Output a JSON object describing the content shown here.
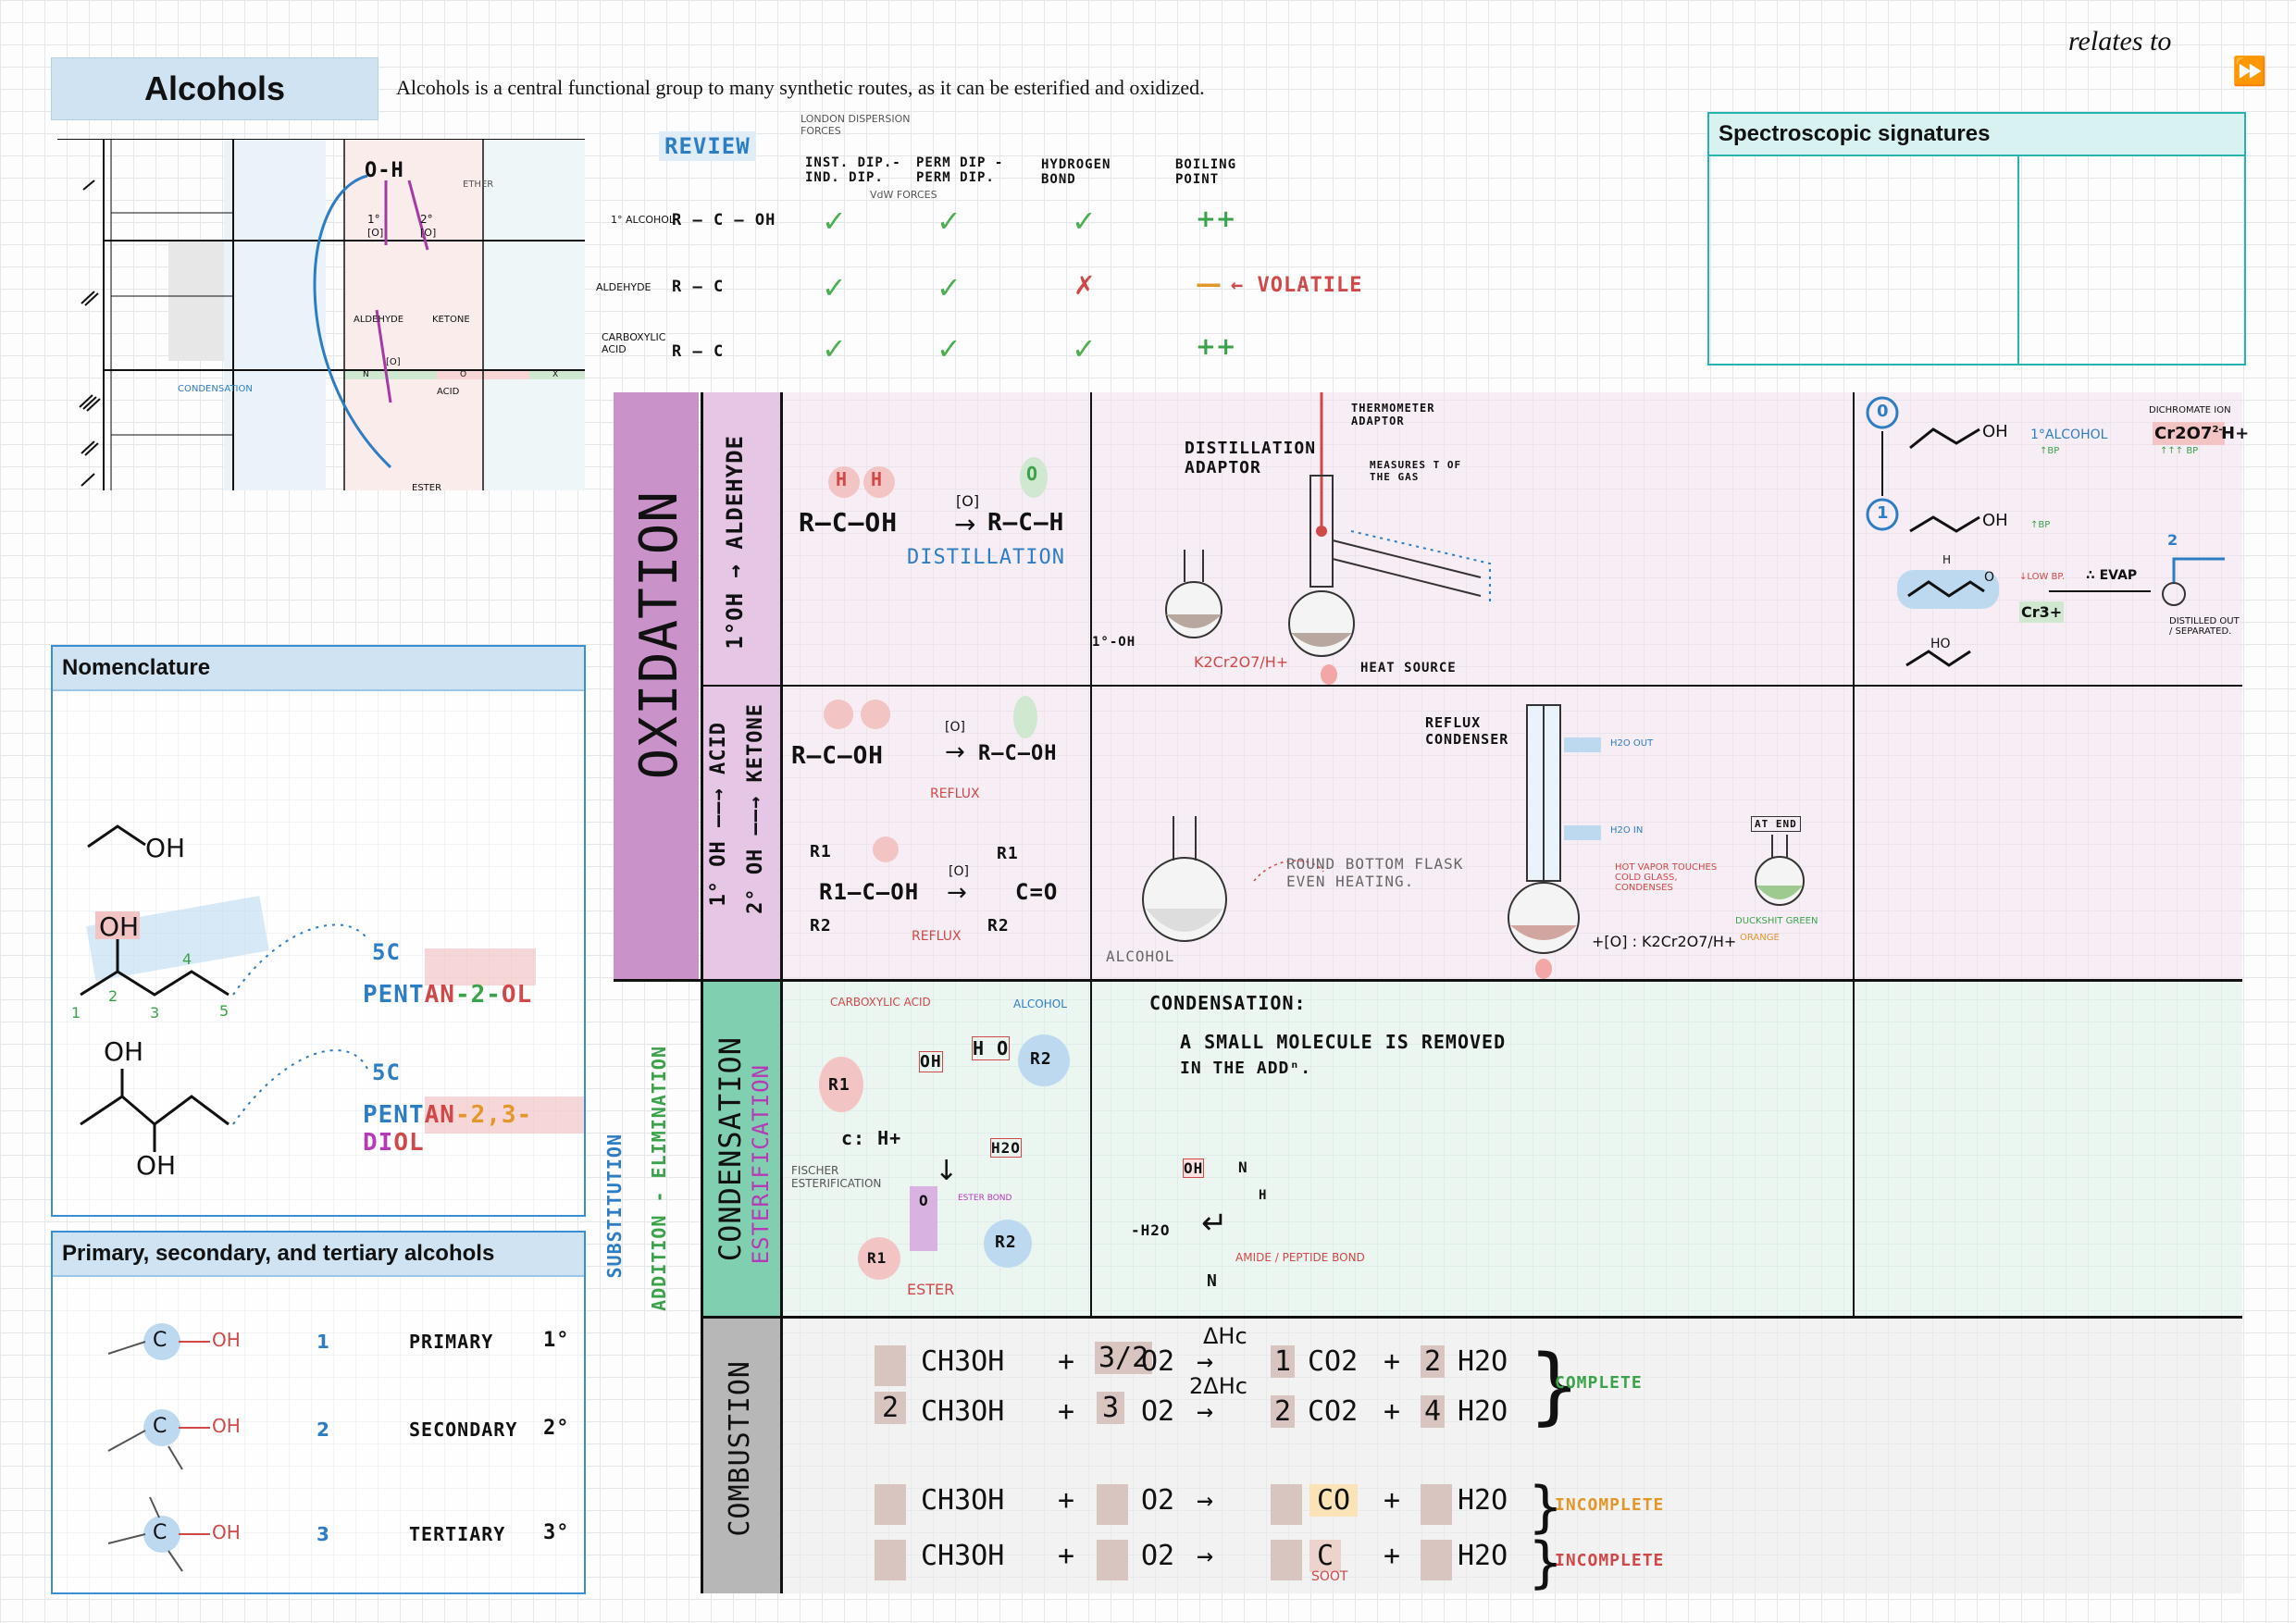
{
  "header": {
    "title": "Alcohols",
    "intro": "Alcohols is a central functional group to many synthetic routes, as it can be esterified and oxidized.",
    "relates_to": "relates to",
    "nav_icon": "fast-forward-icon"
  },
  "spectro": {
    "title": "Spectroscopic signatures"
  },
  "map": {
    "oh": "O-H",
    "ether": "ETHER",
    "o1": "1°",
    "o2": "2°",
    "ox1": "[O]",
    "ox2": "[O]",
    "aldehyde": "ALDEHYDE",
    "ketone": "KETONE",
    "ox3": "[O]",
    "acid": "ACID",
    "ester": "ESTER",
    "condensation": "CONDENSATION",
    "n": "N",
    "o": "O",
    "x": "X"
  },
  "review": {
    "label": "REVIEW",
    "london": "LONDON DISPERSION FORCES",
    "cols": [
      "INST. DIP.- IND. DIP.",
      "PERM DIP - PERM DIP.",
      "HYDROGEN BOND",
      "BOILING POINT"
    ],
    "vdw": "VdW FORCES",
    "rows": [
      {
        "label": "1° ALCOHOL",
        "formula": "R — C — OH",
        "marks": [
          "✓",
          "✓",
          "✓",
          "++"
        ]
      },
      {
        "label": "ALDEHYDE",
        "formula": "R — C",
        "marks": [
          "✓",
          "✓",
          "✗",
          "—"
        ]
      },
      {
        "label": "CARBOXYLIC ACID",
        "formula": "R — C",
        "marks": [
          "✓",
          "✓",
          "✓",
          "++"
        ]
      }
    ],
    "volatile": "← VOLATILE"
  },
  "nomenclature": {
    "title": "Nomenclature",
    "oh1": "OH",
    "oh2": "OH",
    "oh3": "OH",
    "oh4": "OH",
    "c5a": "5C",
    "name1_a": "PENT",
    "name1_b": "AN",
    "name1_c": "-2-",
    "name1_d": "OL",
    "c5b": "5C",
    "name2_a": "PENT",
    "name2_b": "AN",
    "name2_c": "-2,3-",
    "name2_d": "DI",
    "name2_e": "OL",
    "nums": [
      "1",
      "2",
      "3",
      "4",
      "5"
    ]
  },
  "degrees": {
    "title": "Primary, secondary, and tertiary alcohols",
    "rows": [
      {
        "num": "1",
        "name": "PRIMARY",
        "deg": "1°"
      },
      {
        "num": "2",
        "name": "SECONDARY",
        "deg": "2°"
      },
      {
        "num": "3",
        "name": "TERTIARY",
        "deg": "3°"
      }
    ],
    "oh": "OH",
    "c": "C",
    "h": "H"
  },
  "side_labels": {
    "oxidation": "OXIDATION",
    "row1": "1°OH → ALDEHYDE",
    "row2a": "1° OH ——→ ACID",
    "row2b": "2° OH ——→ KETONE",
    "condensation": "CONDENSATION",
    "esterification": "ESTERIFICATION",
    "substitution": "SUBSTITUTION",
    "addition": "ADDITION - ELIMINATION",
    "combustion": "COMBUSTION"
  },
  "ox_aldehyde": {
    "reactant": "R—C—OH",
    "ox": "[O]",
    "product": "R—C—H",
    "method": "DISTILLATION",
    "h": "H",
    "o": "O",
    "thermo": "THERMOMETER ADAPTOR",
    "dist": "DISTILLATION ADAPTOR",
    "measures": "MEASURES T OF THE GAS",
    "alc": "1°-OH",
    "reagent": "K2Cr2O7/H+",
    "heat": "HEAT SOURCE",
    "s0": "0",
    "s1": "1",
    "s2": "2",
    "oh": "OH",
    "alc1": "1°ALCOHOL",
    "bp": "↑BP",
    "dichromate": "DICHROMATE ION",
    "cr2o7": "Cr2O7",
    "charge": "2-",
    "hplus": "H+",
    "bp3": "↑↑↑ BP",
    "bp_low": "↓LOW BP.",
    "evap": "∴ EVAP",
    "cr3": "Cr3+",
    "distilled": "DISTILLED OUT / SEPARATED.",
    "ho": "HO",
    "o_lbl": "O",
    "h_lbl": "H"
  },
  "ox_acid": {
    "reactant": "R—C—OH",
    "ox": "[O]",
    "product": "R—C—OH",
    "reflux": "REFLUX",
    "ketone_reactant": "R1—C—OH",
    "ketone_product": "C=O",
    "r1": "R1",
    "r2": "R2",
    "condenser": "REFLUX CONDENSER",
    "h2o_out": "H2O OUT",
    "h2o_in": "H2O IN",
    "flask": "ROUND BOTTOM FLASK EVEN HEATING.",
    "alcohol": "ALCOHOL",
    "vapor": "HOT VAPOR TOUCHES COLD GLASS, CONDENSES",
    "at_end": "AT END",
    "green": "DUCKSHIT GREEN",
    "orange": "ORANGE",
    "reagent": "+[O] : K2Cr2O7/H+"
  },
  "condensation": {
    "acid": "CARBOXYLIC ACID",
    "alcohol": "ALCOHOL",
    "oh": "OH",
    "ho": "H O",
    "r1": "R1",
    "r2": "R2",
    "cat": "c: H+",
    "h2o": "H2O",
    "fischer": "FISCHER ESTERIFICATION",
    "ester_bond": "ESTER BOND",
    "ester": "ESTER",
    "o": "O",
    "def_title": "CONDENSATION:",
    "def_line1": "A SMALL MOLECULE IS REMOVED",
    "def_line2": "IN THE ADDⁿ.",
    "minus_h2o": "-H2O",
    "amide": "AMIDE / PEPTIDE BOND",
    "n": "N",
    "h": "H",
    "oh2": "OH"
  },
  "combustion": {
    "rows": [
      {
        "coef1": "",
        "fuel": "CH3OH",
        "o2c": "3/2",
        "o2": "O2",
        "arrow": "→",
        "c2": "1",
        "prod1": "CO2",
        "c3": "2",
        "prod2": "H2O"
      },
      {
        "coef1": "2",
        "fuel": "CH3OH",
        "o2c": "3",
        "o2": "O2",
        "arrow": "→",
        "c2": "2",
        "prod1": "CO2",
        "c3": "4",
        "prod2": "H2O"
      },
      {
        "coef1": "",
        "fuel": "CH3OH",
        "o2c": "",
        "o2": "O2",
        "arrow": "→",
        "c2": "",
        "prod1": "CO",
        "c3": "",
        "prod2": "H2O"
      },
      {
        "coef1": "",
        "fuel": "CH3OH",
        "o2c": "",
        "o2": "O2",
        "arrow": "→",
        "c2": "",
        "prod1": "C",
        "c3": "",
        "prod2": "H2O"
      }
    ],
    "dh1": "ΔHc",
    "dh2": "2ΔHc",
    "complete": "COMPLETE",
    "incomplete1": "INCOMPLETE",
    "incomplete2": "INCOMPLETE",
    "soot": "SOOT",
    "plus": "+"
  },
  "colors": {
    "accent_blue": "#3a8fd4",
    "teal": "#27b3b0",
    "oxidation": "#c992c9",
    "condensation": "#7fcfb0",
    "combustion": "#b7b7b7"
  }
}
